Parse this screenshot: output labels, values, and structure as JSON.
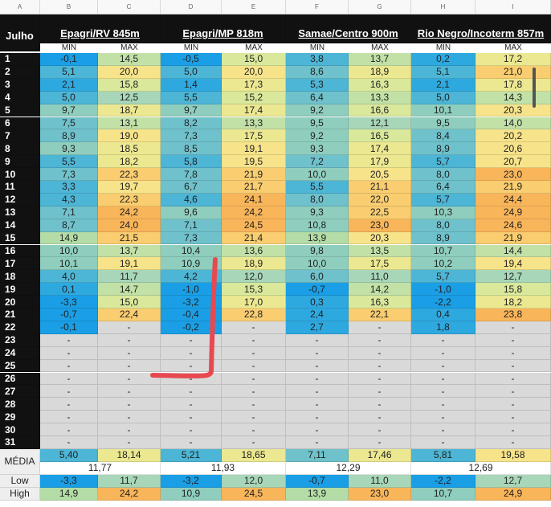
{
  "columns": [
    "A",
    "B",
    "C",
    "D",
    "E",
    "F",
    "G",
    "H",
    "I"
  ],
  "month": "Julho",
  "stations": [
    "Epagri/RV 845m",
    "Epagri/MP 818m",
    "Samae/Centro 900m",
    "Rio Negro/Incoterm 857m"
  ],
  "subheaders": [
    "MIN",
    "MAX",
    "MIN",
    "MAX",
    "MIN",
    "MAX",
    "MIN",
    "MAX"
  ],
  "days": [
    {
      "day": "1",
      "values": [
        "-0,1",
        "14,5",
        "-0,5",
        "15,0",
        "3,8",
        "13,7",
        "0,2",
        "17,2"
      ]
    },
    {
      "day": "2",
      "values": [
        "5,1",
        "20,0",
        "5,0",
        "20,0",
        "8,6",
        "18,9",
        "5,1",
        "21,0"
      ]
    },
    {
      "day": "3",
      "values": [
        "2,1",
        "15,8",
        "1,4",
        "17,3",
        "5,3",
        "16,3",
        "2,1",
        "17,8"
      ]
    },
    {
      "day": "4",
      "values": [
        "5,0",
        "12,5",
        "5,5",
        "15,2",
        "6,4",
        "13,3",
        "5,0",
        "14,3"
      ]
    },
    {
      "day": "5",
      "values": [
        "9,7",
        "18,7",
        "9,7",
        "17,4",
        "9,2",
        "16,6",
        "10,1",
        "20,3"
      ]
    },
    {
      "day": "6",
      "values": [
        "7,5",
        "13,1",
        "8,2",
        "13,3",
        "9,5",
        "12,1",
        "9,5",
        "14,0"
      ]
    },
    {
      "day": "7",
      "values": [
        "8,9",
        "19,0",
        "7,3",
        "17,5",
        "9,2",
        "16,5",
        "8,4",
        "20,2"
      ]
    },
    {
      "day": "8",
      "values": [
        "9,3",
        "18,5",
        "8,5",
        "19,1",
        "9,3",
        "17,4",
        "8,9",
        "20,6"
      ]
    },
    {
      "day": "9",
      "values": [
        "5,5",
        "18,2",
        "5,8",
        "19,5",
        "7,2",
        "17,9",
        "5,7",
        "20,7"
      ]
    },
    {
      "day": "10",
      "values": [
        "7,3",
        "22,3",
        "7,8",
        "21,9",
        "10,0",
        "20,5",
        "8,0",
        "23,0"
      ]
    },
    {
      "day": "11",
      "values": [
        "3,3",
        "19,7",
        "6,7",
        "21,7",
        "5,5",
        "21,1",
        "6,4",
        "21,9"
      ]
    },
    {
      "day": "12",
      "values": [
        "4,3",
        "22,3",
        "4,6",
        "24,1",
        "8,0",
        "22,0",
        "5,7",
        "24,4"
      ]
    },
    {
      "day": "13",
      "values": [
        "7,1",
        "24,2",
        "9,6",
        "24,2",
        "9,3",
        "22,5",
        "10,3",
        "24,9"
      ]
    },
    {
      "day": "14",
      "values": [
        "8,7",
        "24,0",
        "7,1",
        "24,5",
        "10,8",
        "23,0",
        "8,0",
        "24,6"
      ]
    },
    {
      "day": "15",
      "values": [
        "14,9",
        "21,5",
        "7,3",
        "21,4",
        "13,9",
        "20,3",
        "8,9",
        "21,9"
      ]
    },
    {
      "day": "16",
      "values": [
        "10,0",
        "13,7",
        "10,4",
        "13,6",
        "9,8",
        "13,5",
        "10,7",
        "14,4"
      ]
    },
    {
      "day": "17",
      "values": [
        "10,1",
        "19,1",
        "10,9",
        "18,9",
        "10,0",
        "17,5",
        "10,2",
        "19,4"
      ]
    },
    {
      "day": "18",
      "values": [
        "4,0",
        "11,7",
        "4,2",
        "12,0",
        "6,0",
        "11,0",
        "5,7",
        "12,7"
      ]
    },
    {
      "day": "19",
      "values": [
        "0,1",
        "14,7",
        "-1,0",
        "15,3",
        "-0,7",
        "14,2",
        "-1,0",
        "15,8"
      ]
    },
    {
      "day": "20",
      "values": [
        "-3,3",
        "15,0",
        "-3,2",
        "17,0",
        "0,3",
        "16,3",
        "-2,2",
        "18,2"
      ]
    },
    {
      "day": "21",
      "values": [
        "-0,7",
        "22,4",
        "-0,4",
        "22,8",
        "2,4",
        "22,1",
        "0,4",
        "23,8"
      ]
    },
    {
      "day": "22",
      "values": [
        "-0,1",
        "-",
        "-0,2",
        "-",
        "2,7",
        "-",
        "1,8",
        "-"
      ]
    },
    {
      "day": "23",
      "values": [
        "-",
        "-",
        "-",
        "-",
        "-",
        "-",
        "-",
        "-"
      ]
    },
    {
      "day": "24",
      "values": [
        "-",
        "-",
        "-",
        "-",
        "-",
        "-",
        "-",
        "-"
      ]
    },
    {
      "day": "25",
      "values": [
        "-",
        "-",
        "-",
        "-",
        "-",
        "-",
        "-",
        "-"
      ]
    },
    {
      "day": "26",
      "values": [
        "-",
        "-",
        "-",
        "-",
        "-",
        "-",
        "-",
        "-"
      ]
    },
    {
      "day": "27",
      "values": [
        "-",
        "-",
        "-",
        "-",
        "-",
        "-",
        "-",
        "-"
      ]
    },
    {
      "day": "28",
      "values": [
        "-",
        "-",
        "-",
        "-",
        "-",
        "-",
        "-",
        "-"
      ]
    },
    {
      "day": "29",
      "values": [
        "-",
        "-",
        "-",
        "-",
        "-",
        "-",
        "-",
        "-"
      ]
    },
    {
      "day": "30",
      "values": [
        "-",
        "-",
        "-",
        "-",
        "-",
        "-",
        "-",
        "-"
      ]
    },
    {
      "day": "31",
      "values": [
        "-",
        "-",
        "-",
        "-",
        "-",
        "-",
        "-",
        "-"
      ]
    }
  ],
  "summary": {
    "media_label": "MÉDIA",
    "media": [
      "5,40",
      "18,14",
      "5,21",
      "18,65",
      "7,11",
      "17,46",
      "5,81",
      "19,58"
    ],
    "average": [
      "11,77",
      "11,93",
      "12,29",
      "12,69"
    ],
    "low_label": "Low",
    "low": [
      "-3,3",
      "11,7",
      "-3,2",
      "12,0",
      "-0,7",
      "11,0",
      "-2,2",
      "12,7"
    ],
    "high_label": "High",
    "high": [
      "14,9",
      "24,2",
      "10,9",
      "24,5",
      "13,9",
      "23,0",
      "10,7",
      "24,9"
    ]
  }
}
